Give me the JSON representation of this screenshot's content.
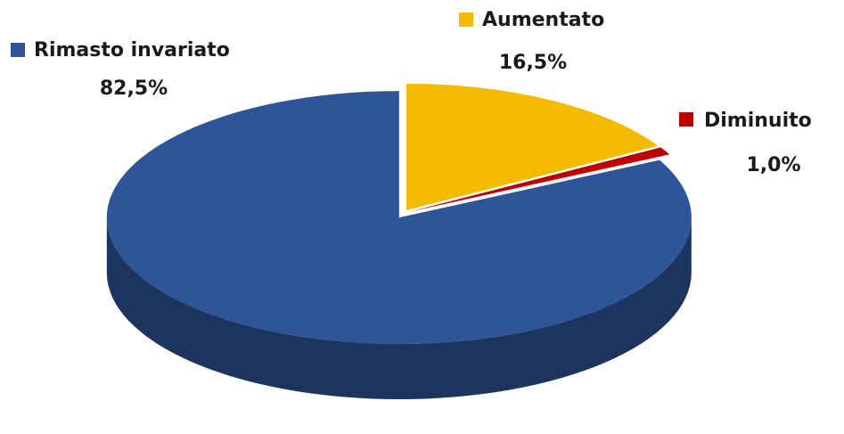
{
  "chart_data": {
    "type": "pie",
    "categories": [
      "Aumentato",
      "Diminuito",
      "Rimasto invariato"
    ],
    "values": [
      16.5,
      1.0,
      82.5
    ],
    "value_labels": [
      "16,5%",
      "1,0%",
      "82,5%"
    ],
    "colors": [
      "#f5bb00",
      "#c00000",
      "#2e5597"
    ]
  }
}
